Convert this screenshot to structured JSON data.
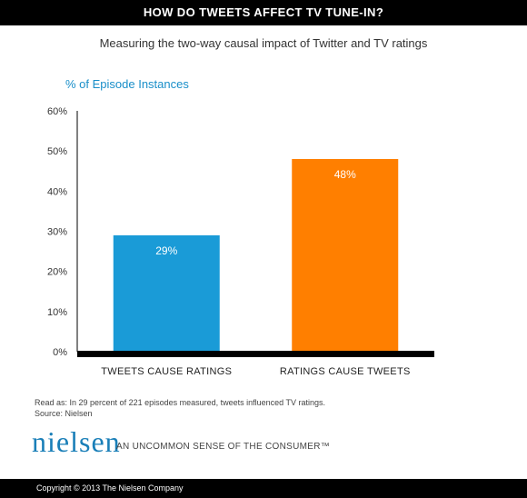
{
  "header": {
    "title": "HOW DO TWEETS AFFECT TV TUNE-IN?"
  },
  "subtitle": "Measuring the two-way causal impact of Twitter and TV ratings",
  "chart_data": {
    "type": "bar",
    "title": "HOW DO TWEETS AFFECT TV TUNE-IN?",
    "subtitle": "Measuring the two-way causal impact of Twitter and TV ratings",
    "ylabel": "% of Episode Instances",
    "xlabel": "",
    "categories": [
      "TWEETS CAUSE RATINGS",
      "RATINGS CAUSE TWEETS"
    ],
    "values": [
      29,
      48
    ],
    "data_labels": [
      "29%",
      "48%"
    ],
    "colors": [
      "#1a9bd7",
      "#ff7f00"
    ],
    "ylim": [
      0,
      60
    ],
    "yticks": [
      {
        "value": 0,
        "label": "0%"
      },
      {
        "value": 10,
        "label": "10%"
      },
      {
        "value": 20,
        "label": "20%"
      },
      {
        "value": 30,
        "label": "30%"
      },
      {
        "value": 40,
        "label": "40%"
      },
      {
        "value": 50,
        "label": "50%"
      },
      {
        "value": 60,
        "label": "60%"
      }
    ],
    "grid": false,
    "legend": "none"
  },
  "note": {
    "read_as": "Read as: In 29 percent of 221 episodes measured, tweets influenced TV ratings.",
    "source": "Source: Nielsen"
  },
  "brand": {
    "logo_text": "nielsen",
    "tagline": "AN UNCOMMON SENSE OF THE CONSUMER™"
  },
  "footer": {
    "copyright": "Copyright © 2013 The Nielsen Company"
  },
  "colors": {
    "accent": "#1a9bd7",
    "orange": "#ff7f00",
    "bar_black": "#000000"
  }
}
